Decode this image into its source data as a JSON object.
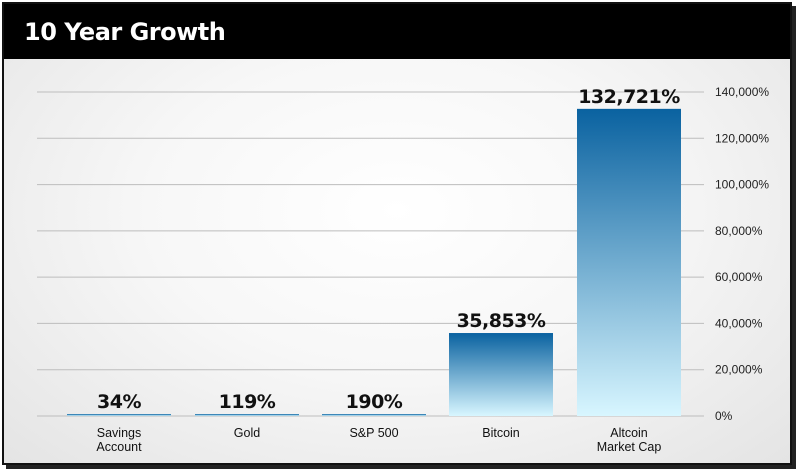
{
  "title": "10 Year Growth",
  "chart_data": {
    "type": "bar",
    "categories": [
      "Savings Account",
      "Gold",
      "S&P 500",
      "Bitcoin",
      "Altcoin Market Cap"
    ],
    "category_lines": [
      [
        "Savings",
        "Account"
      ],
      [
        "Gold"
      ],
      [
        "S&P 500"
      ],
      [
        "Bitcoin"
      ],
      [
        "Altcoin",
        "Market Cap"
      ]
    ],
    "values": [
      34,
      119,
      190,
      35853,
      132721
    ],
    "value_labels": [
      "34%",
      "119%",
      "190%",
      "35,853%",
      "132,721%"
    ],
    "ylim": [
      0,
      140000
    ],
    "yticks": [
      0,
      20000,
      40000,
      60000,
      80000,
      100000,
      120000,
      140000
    ],
    "ytick_labels": [
      "0%",
      "20,000%",
      "40,000%",
      "60,000%",
      "80,000%",
      "100,000%",
      "120,000%",
      "140,000%"
    ],
    "y_axis_position": "right",
    "grid": true,
    "colors": {
      "bar_top": "#0a62a0",
      "bar_bottom": "#d8f6ff",
      "grid": "#bdbdbd",
      "title_bg": "#000000",
      "title_text": "#ffffff"
    }
  }
}
